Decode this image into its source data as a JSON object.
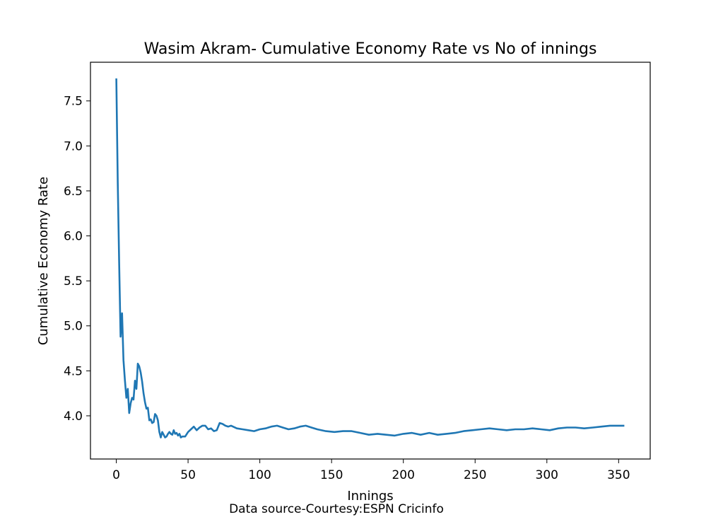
{
  "chart_data": {
    "type": "line",
    "title": "Wasim Akram- Cumulative Economy Rate vs No of innings",
    "xlabel": "Innings",
    "ylabel": "Cumulative Economy Rate",
    "caption": "Data source-Courtesy:ESPN Cricinfo",
    "xlim": [
      -18,
      372
    ],
    "ylim": [
      3.52,
      7.93
    ],
    "xticks": [
      0,
      50,
      100,
      150,
      200,
      250,
      300,
      350
    ],
    "xtick_labels": [
      "0",
      "50",
      "100",
      "150",
      "200",
      "250",
      "300",
      "350"
    ],
    "yticks": [
      4.0,
      4.5,
      5.0,
      5.5,
      6.0,
      6.5,
      7.0,
      7.5
    ],
    "ytick_labels": [
      "4.0",
      "4.5",
      "5.0",
      "5.5",
      "6.0",
      "6.5",
      "7.0",
      "7.5"
    ],
    "grid": false,
    "line_color": "#1f77b4",
    "series": [
      {
        "x": [
          0,
          1,
          2,
          3,
          4,
          5,
          6,
          7,
          8,
          9,
          10,
          11,
          12,
          13,
          14,
          15,
          16,
          17,
          18,
          19,
          20,
          21,
          22,
          23,
          24,
          25,
          26,
          27,
          28,
          29,
          30,
          31,
          32,
          33,
          34,
          35,
          36,
          37,
          38,
          39,
          40,
          41,
          42,
          43,
          44,
          45,
          46,
          47,
          48,
          50,
          52,
          54,
          56,
          58,
          60,
          62,
          64,
          66,
          68,
          70,
          72,
          74,
          76,
          78,
          80,
          84,
          88,
          92,
          96,
          100,
          104,
          108,
          112,
          116,
          120,
          124,
          128,
          132,
          136,
          140,
          146,
          152,
          158,
          164,
          170,
          176,
          182,
          188,
          194,
          200,
          206,
          212,
          218,
          224,
          230,
          236,
          242,
          248,
          254,
          260,
          266,
          272,
          278,
          284,
          290,
          296,
          302,
          308,
          314,
          320,
          326,
          332,
          338,
          344,
          350,
          354
        ],
        "y": [
          7.75,
          6.6,
          5.7,
          4.88,
          5.14,
          4.62,
          4.4,
          4.2,
          4.3,
          4.03,
          4.14,
          4.2,
          4.18,
          4.39,
          4.3,
          4.58,
          4.55,
          4.48,
          4.38,
          4.25,
          4.15,
          4.08,
          4.09,
          3.95,
          3.96,
          3.92,
          3.93,
          4.02,
          4.0,
          3.95,
          3.82,
          3.76,
          3.82,
          3.79,
          3.76,
          3.77,
          3.8,
          3.82,
          3.8,
          3.79,
          3.84,
          3.8,
          3.81,
          3.78,
          3.8,
          3.76,
          3.77,
          3.77,
          3.77,
          3.82,
          3.85,
          3.88,
          3.84,
          3.87,
          3.89,
          3.89,
          3.85,
          3.86,
          3.83,
          3.84,
          3.92,
          3.91,
          3.89,
          3.88,
          3.89,
          3.86,
          3.85,
          3.84,
          3.83,
          3.85,
          3.86,
          3.88,
          3.89,
          3.87,
          3.85,
          3.86,
          3.88,
          3.89,
          3.87,
          3.85,
          3.83,
          3.82,
          3.83,
          3.83,
          3.81,
          3.79,
          3.8,
          3.79,
          3.78,
          3.8,
          3.81,
          3.79,
          3.81,
          3.79,
          3.8,
          3.81,
          3.83,
          3.84,
          3.85,
          3.86,
          3.85,
          3.84,
          3.85,
          3.85,
          3.86,
          3.85,
          3.84,
          3.86,
          3.87,
          3.87,
          3.86,
          3.87,
          3.88,
          3.89,
          3.89,
          3.89
        ]
      }
    ]
  }
}
